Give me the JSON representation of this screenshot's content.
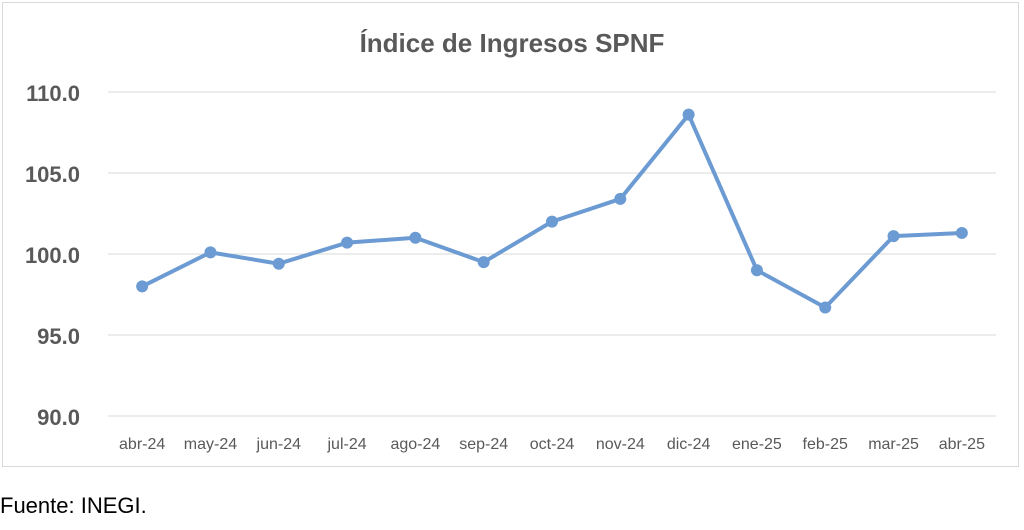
{
  "chart_data": {
    "type": "line",
    "title": "Índice de Ingresos SPNF",
    "xlabel": "",
    "ylabel": "",
    "categories": [
      "abr-24",
      "may-24",
      "jun-24",
      "jul-24",
      "ago-24",
      "sep-24",
      "oct-24",
      "nov-24",
      "dic-24",
      "ene-25",
      "feb-25",
      "mar-25",
      "abr-25"
    ],
    "series": [
      {
        "values": [
          98.0,
          100.1,
          99.4,
          100.7,
          101.0,
          99.5,
          102.0,
          103.4,
          108.6,
          99.0,
          96.7,
          101.1,
          101.3
        ]
      }
    ],
    "ylim": [
      90.0,
      110.0
    ],
    "yticks": [
      "90.0",
      "95.0",
      "100.0",
      "105.0",
      "110.0"
    ],
    "grid": true,
    "legend": "none",
    "line_color": "#6b9bd2",
    "grid_color": "#d9d9d9"
  },
  "source_note": "Fuente: INEGI."
}
